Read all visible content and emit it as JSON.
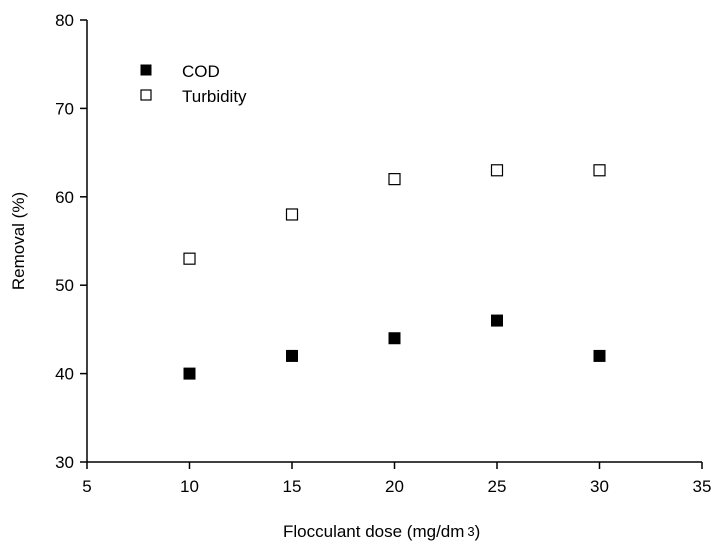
{
  "chart_data": {
    "type": "scatter",
    "xlabel": "Flocculant dose (mg/dm",
    "xlabel_superscript": "3",
    "xlabel_suffix": ")",
    "ylabel": "Removal (%)",
    "xlim": [
      5,
      35
    ],
    "ylim": [
      30,
      80
    ],
    "xticks": [
      5,
      10,
      15,
      20,
      25,
      30,
      35
    ],
    "yticks": [
      30,
      40,
      50,
      60,
      70,
      80
    ],
    "grid": false,
    "legend_position": "top-left",
    "series": [
      {
        "name": "COD",
        "marker": "filled-square",
        "color": "#000000",
        "x": [
          10,
          15,
          20,
          25,
          30
        ],
        "y": [
          40,
          42,
          44,
          46,
          42
        ]
      },
      {
        "name": "Turbidity",
        "marker": "open-square",
        "color": "#000000",
        "x": [
          10,
          15,
          20,
          25,
          30
        ],
        "y": [
          53,
          58,
          62,
          63,
          63
        ]
      }
    ]
  }
}
